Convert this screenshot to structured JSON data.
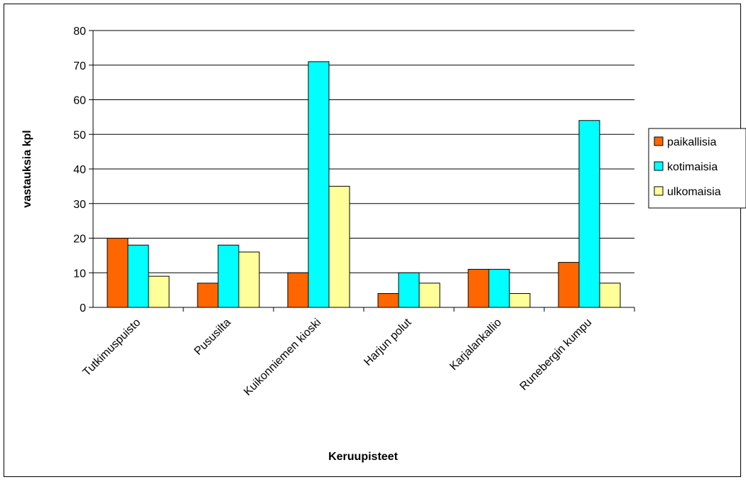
{
  "chart_data": {
    "type": "bar",
    "title": "",
    "xlabel": "Keruupisteet",
    "ylabel": "vastauksia kpl",
    "categories": [
      "Tutkimuspuisto",
      "Pususilta",
      "Kuikonniemen kioski",
      "Harjun polut",
      "Karjalankallio",
      "Runebergin kumpu"
    ],
    "series": [
      {
        "name": "paikallisia",
        "values": [
          20,
          7,
          10,
          4,
          11,
          13
        ],
        "color": "#FF6600"
      },
      {
        "name": "kotimaisia",
        "values": [
          18,
          18,
          71,
          10,
          11,
          54
        ],
        "color": "#00FFFF"
      },
      {
        "name": "ulkomaisia",
        "values": [
          9,
          16,
          35,
          7,
          4,
          7
        ],
        "color": "#FFFF99"
      }
    ],
    "ylim": [
      0,
      80
    ],
    "yticks": [
      0,
      10,
      20,
      30,
      40,
      50,
      60,
      70,
      80
    ],
    "grid": true,
    "legend_position": "right"
  }
}
